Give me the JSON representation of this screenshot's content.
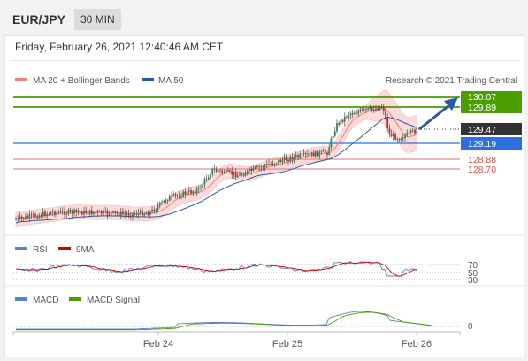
{
  "header": {
    "symbol": "EUR/JPY",
    "timeframe": "30 MIN"
  },
  "date_label": "Friday, February 26, 2021 12:40:46 AM CET",
  "legend": {
    "ma20": "MA 20 + Bollinger Bands",
    "ma50": "MA 50",
    "credit": "Research © 2021 Trading Central",
    "rsi": "RSI",
    "ma9": "9MA",
    "macd": "MACD",
    "macd_signal": "MACD Signal"
  },
  "colors": {
    "ma20": "#f08080",
    "ma50": "#2c5aa0",
    "green": "#4a9e00",
    "red": "#d9534f",
    "dark": "#333333",
    "blue": "#2f6fe0"
  },
  "price_levels": [
    {
      "value": "130.07",
      "style": "green"
    },
    {
      "value": "129.89",
      "style": "green"
    },
    {
      "value": "129.47",
      "style": "dark"
    },
    {
      "value": "129.19",
      "style": "blue"
    },
    {
      "value": "128.88",
      "style": "red"
    },
    {
      "value": "128.70",
      "style": "red"
    }
  ],
  "rsi_levels": [
    "70",
    "50",
    "30"
  ],
  "macd_level": "0",
  "x_axis": [
    "Feb 24",
    "Feb 25",
    "Feb 26"
  ]
}
